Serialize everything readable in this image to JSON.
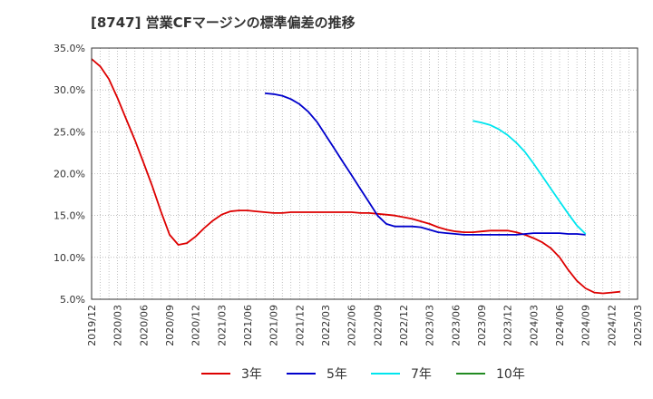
{
  "title": "[8747]  営業CFマージンの標準偏差の推移",
  "colors": {
    "3年": "#dd0000",
    "5年": "#0000cc",
    "7年": "#00e5ee",
    "10年": "#228b22"
  },
  "chart_data": {
    "type": "line",
    "title": "[8747]  営業CFマージンの標準偏差の推移",
    "xlabel": "",
    "ylabel": "",
    "ylim": [
      5.0,
      35.0
    ],
    "y_ticks": [
      "5.0%",
      "10.0%",
      "15.0%",
      "20.0%",
      "25.0%",
      "30.0%",
      "35.0%"
    ],
    "x_ticks": [
      "2019/12",
      "2020/03",
      "2020/06",
      "2020/09",
      "2020/12",
      "2021/03",
      "2021/06",
      "2021/09",
      "2021/12",
      "2022/03",
      "2022/06",
      "2022/09",
      "2022/12",
      "2023/03",
      "2023/06",
      "2023/09",
      "2023/12",
      "2024/03",
      "2024/06",
      "2024/09",
      "2024/12",
      "2025/03"
    ],
    "grid": true,
    "legend_position": "bottom",
    "series": [
      {
        "name": "3年",
        "start": "2019/12",
        "values": [
          33.7,
          32.8,
          31.3,
          29.0,
          26.5,
          24.0,
          21.3,
          18.5,
          15.5,
          12.7,
          11.5,
          11.7,
          12.5,
          13.5,
          14.4,
          15.1,
          15.5,
          15.6,
          15.6,
          15.5,
          15.4,
          15.3,
          15.3,
          15.4,
          15.4,
          15.4,
          15.4,
          15.4,
          15.4,
          15.4,
          15.4,
          15.3,
          15.3,
          15.2,
          15.1,
          15.0,
          14.8,
          14.6,
          14.3,
          14.0,
          13.6,
          13.3,
          13.1,
          13.0,
          13.0,
          13.1,
          13.2,
          13.2,
          13.2,
          13.0,
          12.7,
          12.3,
          11.8,
          11.1,
          10.0,
          8.5,
          7.2,
          6.3,
          5.8,
          5.7,
          5.8,
          5.9
        ]
      },
      {
        "name": "5年",
        "start": "2021/08",
        "values": [
          29.6,
          29.5,
          29.3,
          28.9,
          28.3,
          27.4,
          26.2,
          24.6,
          23.0,
          21.4,
          19.8,
          18.2,
          16.6,
          15.0,
          14.0,
          13.7,
          13.7,
          13.7,
          13.6,
          13.3,
          13.0,
          12.9,
          12.8,
          12.7,
          12.7,
          12.7,
          12.7,
          12.7,
          12.7,
          12.7,
          12.8,
          12.9,
          12.9,
          12.9,
          12.9,
          12.8,
          12.8,
          12.7
        ]
      },
      {
        "name": "7年",
        "start": "2023/08",
        "values": [
          26.3,
          26.1,
          25.8,
          25.3,
          24.6,
          23.7,
          22.6,
          21.2,
          19.7,
          18.2,
          16.7,
          15.2,
          13.8,
          12.8
        ]
      },
      {
        "name": "10年",
        "start": "2024/09",
        "values": []
      }
    ]
  },
  "legend": {
    "items": [
      {
        "label": "3年"
      },
      {
        "label": "5年"
      },
      {
        "label": "7年"
      },
      {
        "label": "10年"
      }
    ]
  }
}
